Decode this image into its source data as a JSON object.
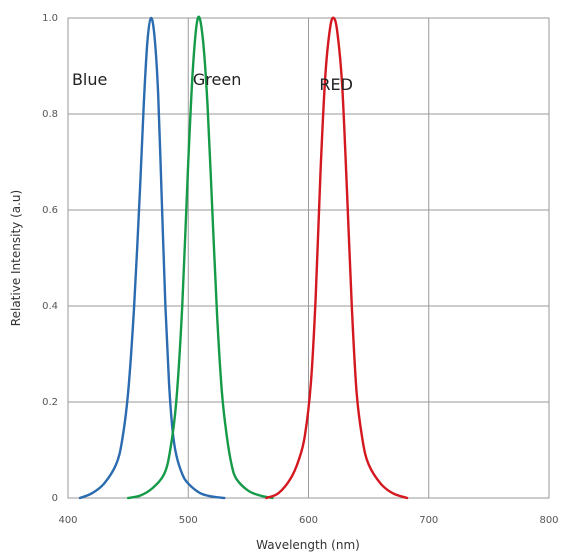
{
  "chart_data": {
    "type": "line",
    "xlabel": "Wavelength (nm)",
    "ylabel": "Relative Intensity (a.u)",
    "xlim": [
      400,
      800
    ],
    "ylim": [
      0,
      1.0
    ],
    "x_ticks": [
      "400",
      "500",
      "600",
      "700",
      "800"
    ],
    "y_ticks": [
      "0",
      "0.2",
      "0.4",
      "0.6",
      "0.8",
      "1.0"
    ],
    "grid": true,
    "series": [
      {
        "name": "Blue",
        "color": "#2b6cb0",
        "points": [
          [
            410,
            0
          ],
          [
            420,
            0.01
          ],
          [
            430,
            0.03
          ],
          [
            440,
            0.07
          ],
          [
            445,
            0.12
          ],
          [
            450,
            0.22
          ],
          [
            455,
            0.4
          ],
          [
            460,
            0.65
          ],
          [
            463,
            0.82
          ],
          [
            466,
            0.95
          ],
          [
            469,
            1.0
          ],
          [
            472,
            0.96
          ],
          [
            475,
            0.84
          ],
          [
            478,
            0.62
          ],
          [
            481,
            0.4
          ],
          [
            484,
            0.24
          ],
          [
            487,
            0.14
          ],
          [
            490,
            0.09
          ],
          [
            495,
            0.05
          ],
          [
            500,
            0.03
          ],
          [
            510,
            0.01
          ],
          [
            520,
            0.003
          ],
          [
            530,
            0
          ]
        ]
      },
      {
        "name": "Green",
        "color": "#159a48",
        "points": [
          [
            450,
            0
          ],
          [
            460,
            0.005
          ],
          [
            470,
            0.02
          ],
          [
            480,
            0.05
          ],
          [
            485,
            0.1
          ],
          [
            490,
            0.2
          ],
          [
            495,
            0.4
          ],
          [
            500,
            0.7
          ],
          [
            504,
            0.9
          ],
          [
            508,
            1.0
          ],
          [
            512,
            0.96
          ],
          [
            516,
            0.82
          ],
          [
            520,
            0.6
          ],
          [
            524,
            0.38
          ],
          [
            528,
            0.22
          ],
          [
            532,
            0.13
          ],
          [
            536,
            0.07
          ],
          [
            540,
            0.04
          ],
          [
            550,
            0.015
          ],
          [
            560,
            0.005
          ],
          [
            570,
            0
          ]
        ]
      },
      {
        "name": "RED",
        "color": "#d4181f",
        "points": [
          [
            565,
            0
          ],
          [
            575,
            0.01
          ],
          [
            585,
            0.04
          ],
          [
            592,
            0.08
          ],
          [
            597,
            0.13
          ],
          [
            602,
            0.24
          ],
          [
            606,
            0.42
          ],
          [
            610,
            0.68
          ],
          [
            614,
            0.88
          ],
          [
            618,
            0.98
          ],
          [
            621,
            1.0
          ],
          [
            624,
            0.97
          ],
          [
            628,
            0.86
          ],
          [
            632,
            0.64
          ],
          [
            636,
            0.4
          ],
          [
            640,
            0.22
          ],
          [
            645,
            0.12
          ],
          [
            650,
            0.07
          ],
          [
            660,
            0.03
          ],
          [
            670,
            0.01
          ],
          [
            682,
            0
          ]
        ]
      }
    ],
    "series_label_positions": [
      {
        "name": "Blue",
        "x": 418,
        "y": 0.86
      },
      {
        "name": "Green",
        "x": 524,
        "y": 0.86
      },
      {
        "name": "RED",
        "x": 623,
        "y": 0.85
      }
    ]
  }
}
